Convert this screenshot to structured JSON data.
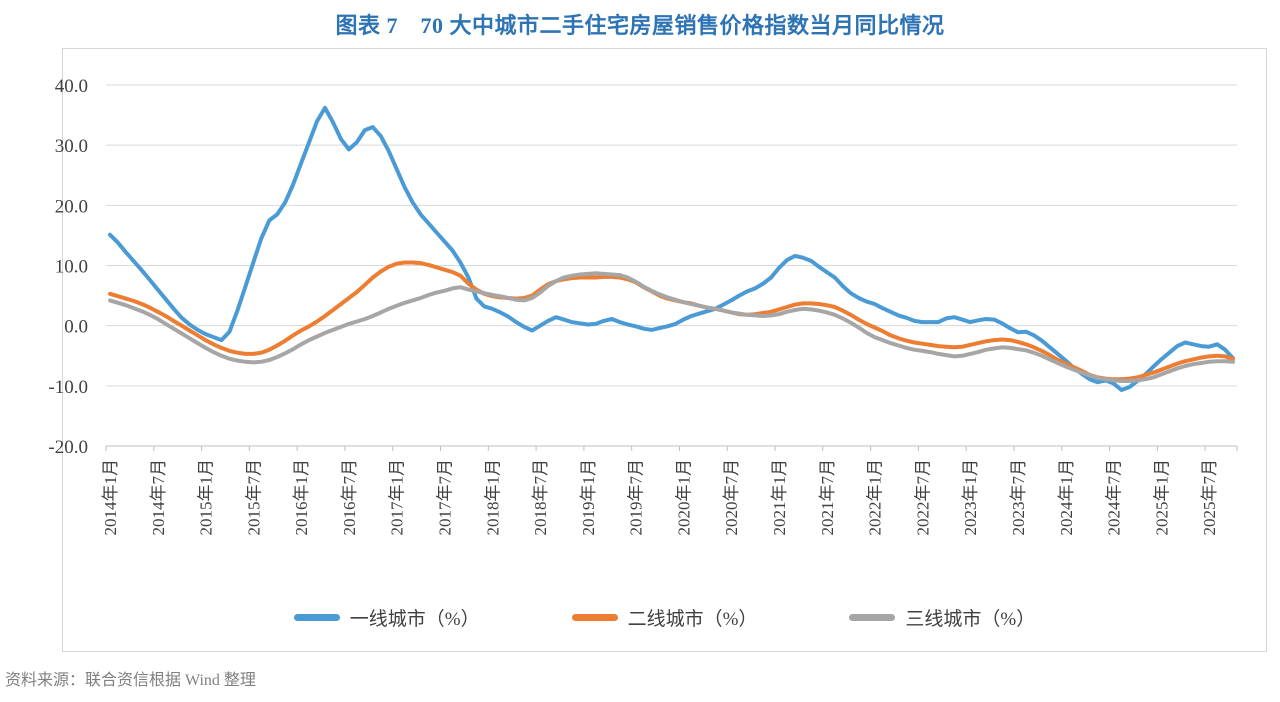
{
  "source_note": "资料来源：联合资信根据 Wind 整理",
  "chart_data": {
    "type": "line",
    "title": "图表 7　70 大中城市二手住宅房屋销售价格指数当月同比情况",
    "ylabel": "",
    "xlabel": "",
    "ylim": [
      -20,
      40
    ],
    "grid": "horizontal",
    "legend_position": "bottom",
    "colors": {
      "grid": "#D9D9D9",
      "axis": "#BFBFBF",
      "tick_text": "#404040"
    },
    "y_tick_labels": [
      "40.0",
      "30.0",
      "20.0",
      "10.0",
      "0.0",
      "-10.0",
      "-20.0"
    ],
    "x_tick_labels": [
      "2014年1月",
      "2014年7月",
      "2015年1月",
      "2015年7月",
      "2016年1月",
      "2016年7月",
      "2017年1月",
      "2017年7月",
      "2018年1月",
      "2018年7月",
      "2019年1月",
      "2019年7月",
      "2020年1月",
      "2020年7月",
      "2021年1月",
      "2021年7月",
      "2022年1月",
      "2022年7月",
      "2023年1月",
      "2023年7月",
      "2024年1月",
      "2024年7月",
      "2025年1月",
      "2025年7月"
    ],
    "months": [
      "2014-01",
      "2014-02",
      "2014-03",
      "2014-04",
      "2014-05",
      "2014-06",
      "2014-07",
      "2014-08",
      "2014-09",
      "2014-10",
      "2014-11",
      "2014-12",
      "2015-01",
      "2015-02",
      "2015-03",
      "2015-04",
      "2015-05",
      "2015-06",
      "2015-07",
      "2015-08",
      "2015-09",
      "2015-10",
      "2015-11",
      "2015-12",
      "2016-01",
      "2016-02",
      "2016-03",
      "2016-04",
      "2016-05",
      "2016-06",
      "2016-07",
      "2016-08",
      "2016-09",
      "2016-10",
      "2016-11",
      "2016-12",
      "2017-01",
      "2017-02",
      "2017-03",
      "2017-04",
      "2017-05",
      "2017-06",
      "2017-07",
      "2017-08",
      "2017-09",
      "2017-10",
      "2017-11",
      "2017-12",
      "2018-01",
      "2018-02",
      "2018-03",
      "2018-04",
      "2018-05",
      "2018-06",
      "2018-07",
      "2018-08",
      "2018-09",
      "2018-10",
      "2018-11",
      "2018-12",
      "2019-01",
      "2019-02",
      "2019-03",
      "2019-04",
      "2019-05",
      "2019-06",
      "2019-07",
      "2019-08",
      "2019-09",
      "2019-10",
      "2019-11",
      "2019-12",
      "2020-01",
      "2020-02",
      "2020-03",
      "2020-04",
      "2020-05",
      "2020-06",
      "2020-07",
      "2020-08",
      "2020-09",
      "2020-10",
      "2020-11",
      "2020-12",
      "2021-01",
      "2021-02",
      "2021-03",
      "2021-04",
      "2021-05",
      "2021-06",
      "2021-07",
      "2021-08",
      "2021-09",
      "2021-10",
      "2021-11",
      "2021-12",
      "2022-01",
      "2022-02",
      "2022-03",
      "2022-04",
      "2022-05",
      "2022-06",
      "2022-07",
      "2022-08",
      "2022-09",
      "2022-10",
      "2022-11",
      "2022-12",
      "2023-01",
      "2023-02",
      "2023-03",
      "2023-04",
      "2023-05",
      "2023-06",
      "2023-07",
      "2023-08",
      "2023-09",
      "2023-10",
      "2023-11",
      "2023-12",
      "2024-01",
      "2024-02",
      "2024-03",
      "2024-04",
      "2024-05",
      "2024-06",
      "2024-07",
      "2024-08",
      "2024-09",
      "2024-10",
      "2024-11",
      "2024-12",
      "2025-01",
      "2025-02",
      "2025-03",
      "2025-04",
      "2025-05",
      "2025-06",
      "2025-07",
      "2025-08",
      "2025-09",
      "2025-10"
    ],
    "series": [
      {
        "key": "first-tier",
        "name": "一线城市（%）",
        "color": "#4A9AD5",
        "values": [
          15.1,
          13.8,
          12.2,
          10.7,
          9.2,
          7.6,
          6.0,
          4.4,
          2.8,
          1.3,
          0.2,
          -0.7,
          -1.4,
          -1.9,
          -2.4,
          -1.0,
          2.5,
          6.5,
          10.5,
          14.5,
          17.5,
          18.5,
          20.5,
          23.5,
          27.0,
          30.5,
          34.0,
          36.2,
          33.8,
          31.0,
          29.3,
          30.5,
          32.5,
          33.0,
          31.5,
          29.0,
          26.0,
          23.0,
          20.5,
          18.5,
          17.0,
          15.5,
          14.0,
          12.5,
          10.5,
          8.0,
          4.5,
          3.2,
          2.8,
          2.2,
          1.5,
          0.6,
          -0.2,
          -0.8,
          0.0,
          0.8,
          1.4,
          1.0,
          0.6,
          0.4,
          0.2,
          0.3,
          0.8,
          1.1,
          0.6,
          0.2,
          -0.1,
          -0.5,
          -0.7,
          -0.4,
          -0.1,
          0.3,
          1.0,
          1.6,
          2.0,
          2.4,
          2.8,
          3.5,
          4.2,
          5.0,
          5.7,
          6.2,
          7.0,
          8.0,
          9.6,
          10.9,
          11.6,
          11.3,
          10.8,
          9.8,
          8.9,
          8.0,
          6.6,
          5.4,
          4.6,
          4.0,
          3.6,
          2.9,
          2.3,
          1.7,
          1.3,
          0.8,
          0.6,
          0.6,
          0.6,
          1.2,
          1.4,
          1.0,
          0.6,
          0.9,
          1.1,
          1.0,
          0.4,
          -0.4,
          -1.1,
          -1.0,
          -1.6,
          -2.5,
          -3.6,
          -4.7,
          -5.8,
          -7.0,
          -8.0,
          -8.9,
          -9.4,
          -9.1,
          -9.6,
          -10.7,
          -10.2,
          -9.2,
          -8.1,
          -6.8,
          -5.6,
          -4.5,
          -3.4,
          -2.8,
          -3.1,
          -3.4,
          -3.5,
          -3.1,
          -4.0,
          -5.4
        ]
      },
      {
        "key": "second-tier",
        "name": "二线城市（%）",
        "color": "#ED7D31",
        "values": [
          5.3,
          4.9,
          4.5,
          4.1,
          3.6,
          3.0,
          2.3,
          1.6,
          0.8,
          0.0,
          -0.8,
          -1.6,
          -2.4,
          -3.1,
          -3.7,
          -4.2,
          -4.5,
          -4.7,
          -4.7,
          -4.5,
          -4.0,
          -3.3,
          -2.5,
          -1.6,
          -0.8,
          -0.1,
          0.7,
          1.6,
          2.6,
          3.6,
          4.6,
          5.6,
          6.8,
          8.0,
          9.0,
          9.8,
          10.3,
          10.5,
          10.5,
          10.4,
          10.1,
          9.7,
          9.3,
          8.9,
          8.3,
          7.0,
          6.0,
          5.3,
          4.9,
          4.7,
          4.6,
          4.5,
          4.6,
          5.0,
          6.0,
          6.9,
          7.4,
          7.7,
          7.9,
          8.0,
          8.0,
          8.0,
          8.1,
          8.1,
          8.0,
          7.7,
          7.2,
          6.4,
          5.7,
          5.0,
          4.5,
          4.2,
          3.9,
          3.7,
          3.3,
          3.0,
          2.8,
          2.5,
          2.2,
          1.9,
          1.8,
          1.9,
          2.1,
          2.3,
          2.7,
          3.1,
          3.5,
          3.7,
          3.7,
          3.6,
          3.4,
          3.1,
          2.5,
          1.8,
          1.0,
          0.3,
          -0.3,
          -0.9,
          -1.6,
          -2.1,
          -2.5,
          -2.8,
          -3.0,
          -3.2,
          -3.4,
          -3.5,
          -3.6,
          -3.5,
          -3.2,
          -2.9,
          -2.6,
          -2.4,
          -2.3,
          -2.4,
          -2.7,
          -3.1,
          -3.6,
          -4.2,
          -4.9,
          -5.7,
          -6.3,
          -6.9,
          -7.5,
          -8.2,
          -8.6,
          -8.8,
          -8.9,
          -8.9,
          -8.8,
          -8.6,
          -8.2,
          -7.8,
          -7.3,
          -6.8,
          -6.3,
          -5.9,
          -5.6,
          -5.3,
          -5.1,
          -5.0,
          -5.1,
          -5.5
        ]
      },
      {
        "key": "third-tier",
        "name": "三线城市（%）",
        "color": "#A6A6A6",
        "values": [
          4.2,
          3.8,
          3.4,
          2.9,
          2.4,
          1.8,
          1.1,
          0.3,
          -0.5,
          -1.3,
          -2.1,
          -2.9,
          -3.7,
          -4.4,
          -5.0,
          -5.5,
          -5.8,
          -6.0,
          -6.1,
          -6.0,
          -5.7,
          -5.2,
          -4.6,
          -3.9,
          -3.1,
          -2.4,
          -1.8,
          -1.2,
          -0.7,
          -0.2,
          0.3,
          0.7,
          1.1,
          1.6,
          2.2,
          2.8,
          3.3,
          3.8,
          4.2,
          4.6,
          5.1,
          5.5,
          5.8,
          6.2,
          6.4,
          6.0,
          5.7,
          5.4,
          5.1,
          4.9,
          4.6,
          4.3,
          4.2,
          4.6,
          5.5,
          6.6,
          7.4,
          8.0,
          8.3,
          8.5,
          8.6,
          8.7,
          8.6,
          8.5,
          8.4,
          8.0,
          7.3,
          6.5,
          5.8,
          5.2,
          4.7,
          4.3,
          3.9,
          3.6,
          3.3,
          3.0,
          2.8,
          2.5,
          2.2,
          2.0,
          1.8,
          1.7,
          1.6,
          1.7,
          1.9,
          2.3,
          2.6,
          2.8,
          2.7,
          2.5,
          2.2,
          1.8,
          1.2,
          0.5,
          -0.3,
          -1.2,
          -1.9,
          -2.4,
          -2.9,
          -3.3,
          -3.7,
          -4.0,
          -4.2,
          -4.4,
          -4.7,
          -4.9,
          -5.1,
          -5.0,
          -4.7,
          -4.4,
          -4.0,
          -3.8,
          -3.6,
          -3.7,
          -3.9,
          -4.1,
          -4.5,
          -5.0,
          -5.6,
          -6.2,
          -6.8,
          -7.3,
          -7.8,
          -8.3,
          -8.7,
          -8.9,
          -9.1,
          -9.2,
          -9.2,
          -9.1,
          -8.9,
          -8.6,
          -8.1,
          -7.6,
          -7.1,
          -6.7,
          -6.4,
          -6.2,
          -6.0,
          -5.9,
          -5.9,
          -6.0
        ]
      }
    ]
  }
}
